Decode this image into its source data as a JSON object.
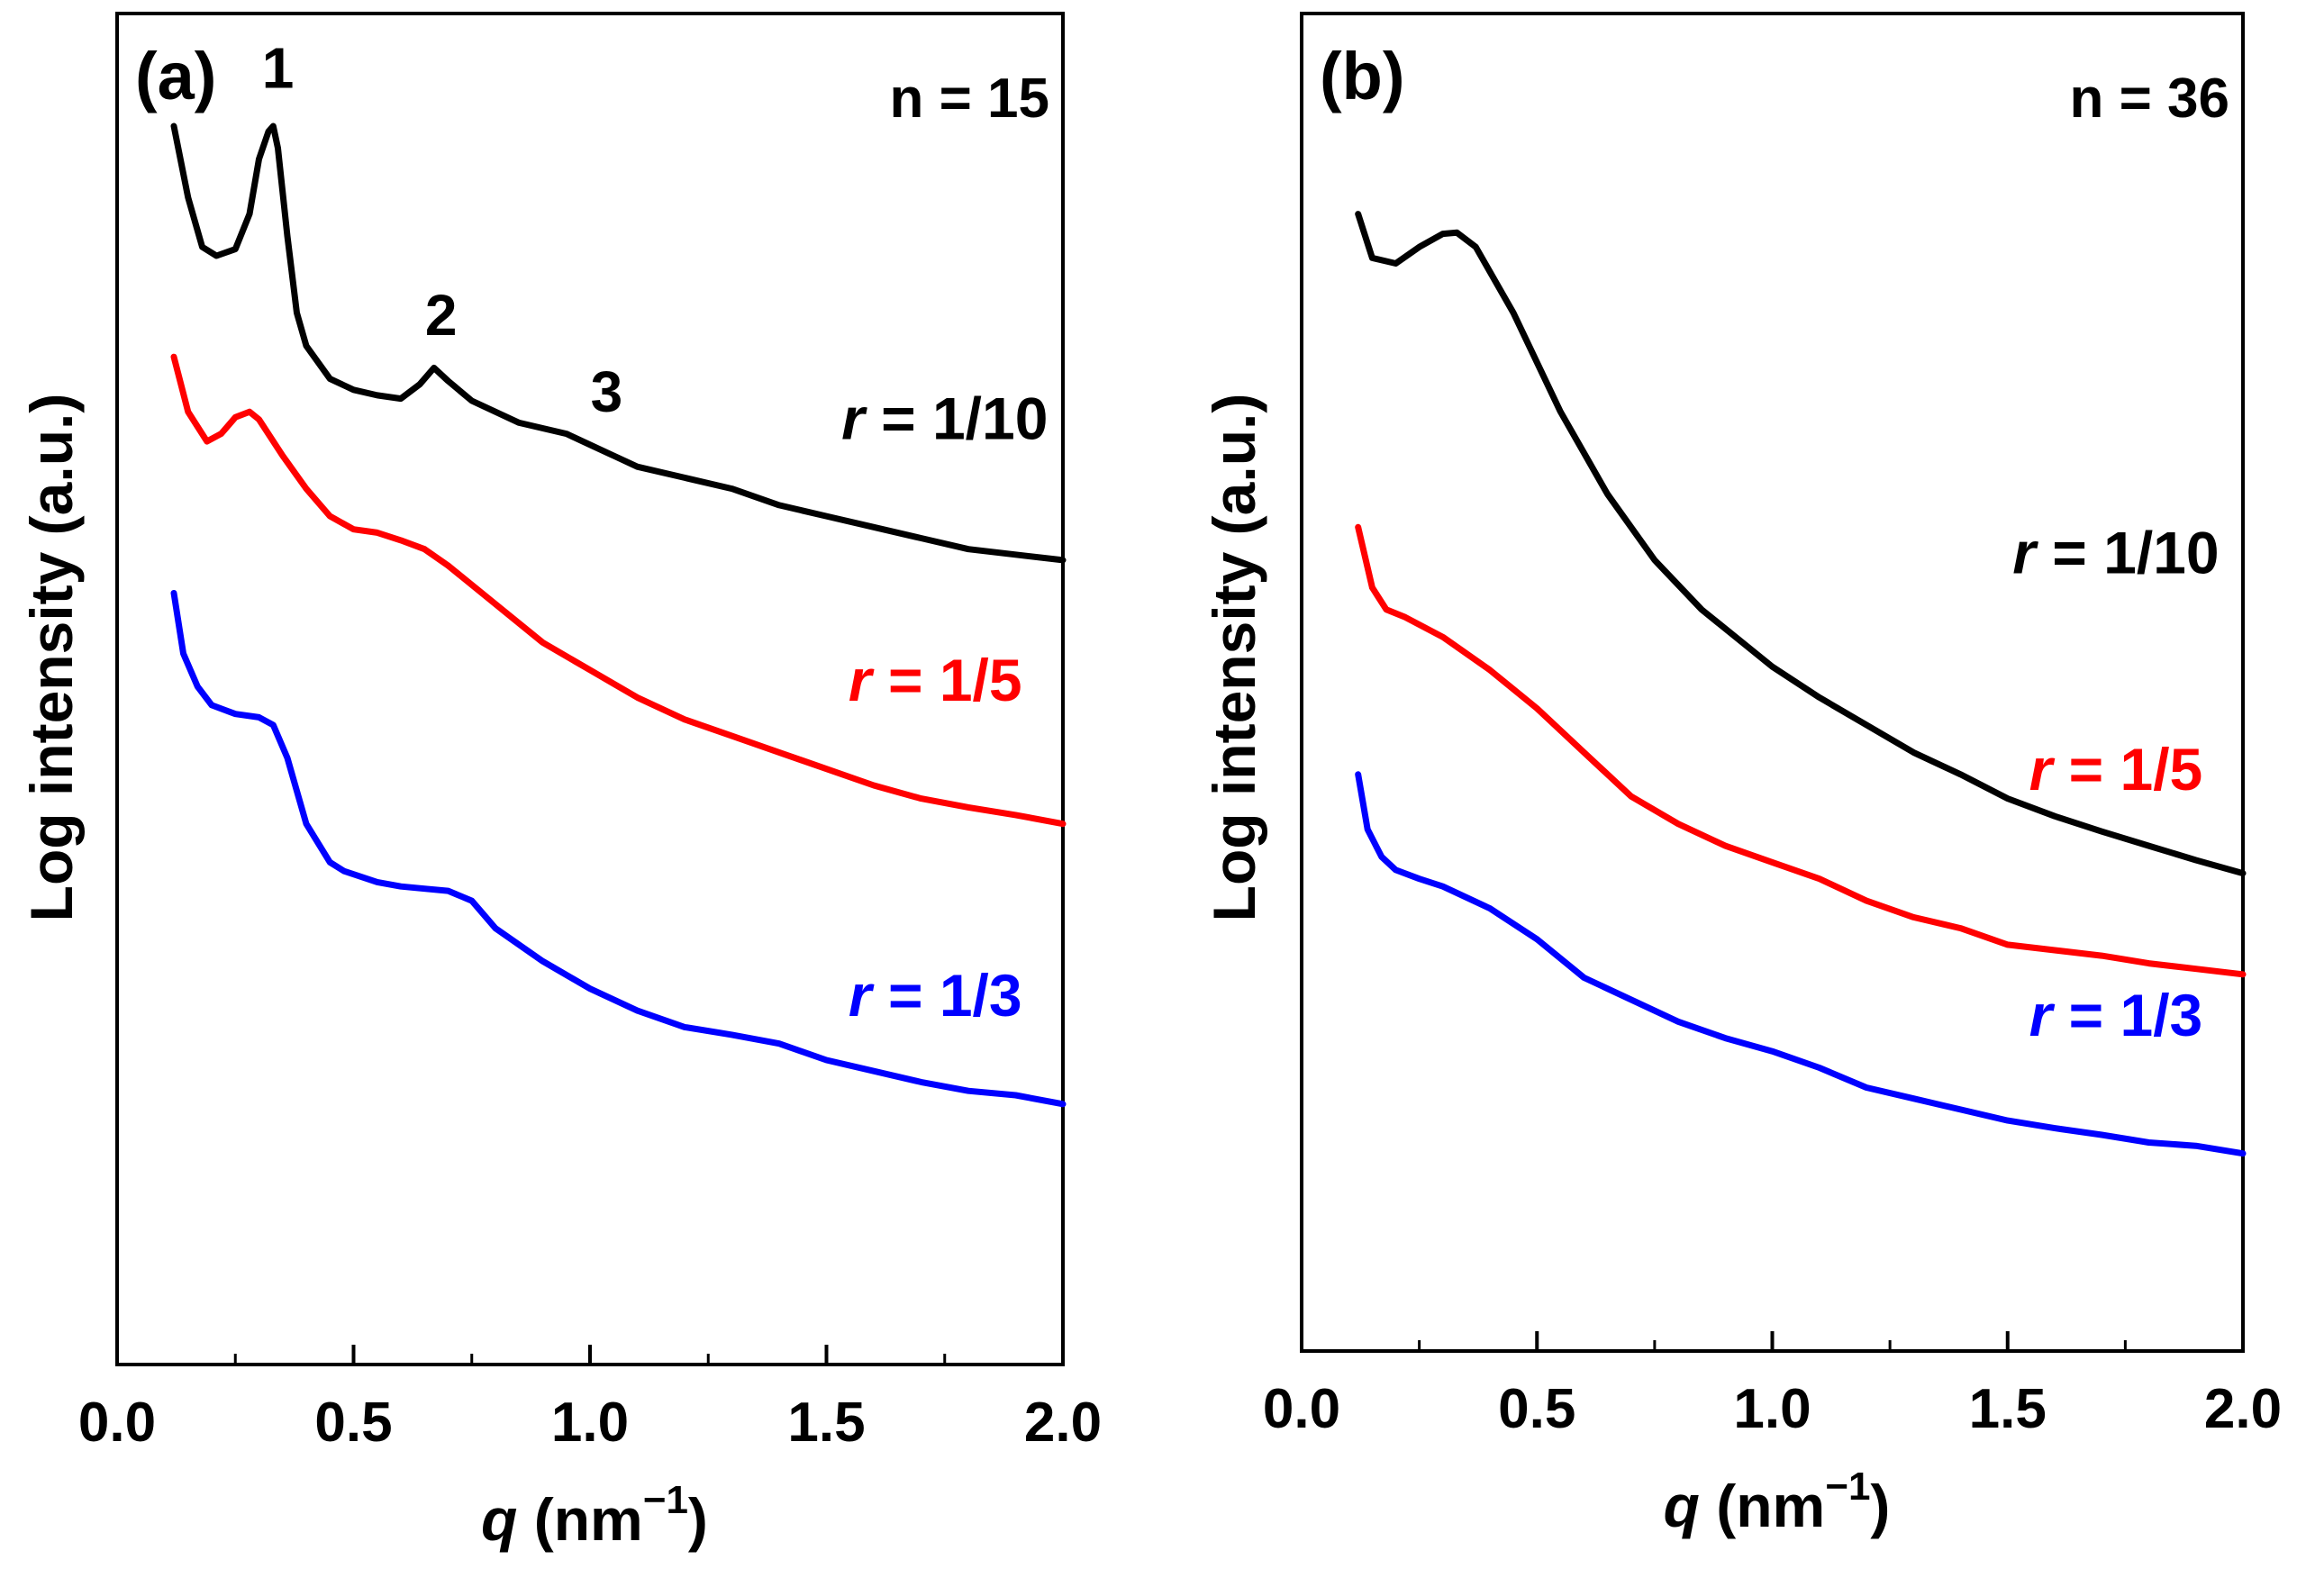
{
  "chart_data": [
    {
      "type": "line",
      "panel_label": "(a)",
      "annotation": "n = 15",
      "xlabel_main": "q",
      "xlabel_unit": " (nm",
      "xlabel_sup": "−1",
      "xlabel_close": ")",
      "ylabel": "Log intensity (a.u.)",
      "xlim": [
        0.0,
        2.0
      ],
      "ylim": [
        0,
        100
      ],
      "x_ticks": [
        0.0,
        0.5,
        1.0,
        1.5,
        2.0
      ],
      "x_tick_labels": [
        "0.0",
        "0.5",
        "1.0",
        "1.5",
        "2.0"
      ],
      "y_ticks_shown": false,
      "series": [
        {
          "name": "r = 1/10",
          "label_prefix": "r",
          "label_suffix": " = 1/10",
          "color": "#000000",
          "label_pos": [
            1.75,
            71.5
          ],
          "x": [
            0.12,
            0.15,
            0.18,
            0.21,
            0.25,
            0.28,
            0.3,
            0.32,
            0.33,
            0.34,
            0.36,
            0.38,
            0.4,
            0.45,
            0.5,
            0.55,
            0.6,
            0.64,
            0.67,
            0.7,
            0.75,
            0.85,
            0.95,
            1.0,
            1.05,
            1.1,
            1.2,
            1.3,
            1.4,
            1.5,
            1.6,
            1.7,
            1.8,
            1.9,
            2.0
          ],
          "y": [
            100.0,
            93.5,
            89.0,
            88.2,
            88.8,
            92.0,
            97.0,
            99.5,
            100.0,
            98.0,
            90.0,
            83.0,
            80.0,
            77.0,
            76.0,
            75.5,
            75.2,
            76.5,
            78.0,
            76.8,
            75.0,
            73.0,
            72.0,
            71.0,
            70.0,
            69.0,
            68.0,
            67.0,
            65.5,
            64.5,
            63.5,
            62.5,
            61.5,
            61.0,
            60.5
          ]
        },
        {
          "name": "r = 1/5",
          "label_prefix": "r",
          "label_suffix": " = 1/5",
          "color": "#ff0000",
          "label_pos": [
            1.73,
            47.7
          ],
          "x": [
            0.12,
            0.15,
            0.19,
            0.22,
            0.25,
            0.28,
            0.3,
            0.35,
            0.4,
            0.45,
            0.5,
            0.55,
            0.6,
            0.65,
            0.7,
            0.8,
            0.9,
            1.0,
            1.1,
            1.2,
            1.3,
            1.4,
            1.5,
            1.6,
            1.7,
            1.8,
            1.9,
            2.0
          ],
          "y": [
            79.0,
            74.0,
            71.3,
            72.0,
            73.5,
            74.0,
            73.3,
            70.0,
            67.0,
            64.5,
            63.3,
            63.0,
            62.3,
            61.5,
            60.0,
            56.5,
            53.0,
            50.5,
            48.0,
            46.0,
            44.5,
            43.0,
            41.5,
            40.0,
            38.8,
            38.0,
            37.3,
            36.5
          ]
        },
        {
          "name": "r = 1/3",
          "label_prefix": "r",
          "label_suffix": " = 1/3",
          "color": "#0000ff",
          "label_pos": [
            1.73,
            19.0
          ],
          "x": [
            0.12,
            0.14,
            0.17,
            0.2,
            0.25,
            0.3,
            0.33,
            0.36,
            0.4,
            0.45,
            0.48,
            0.55,
            0.6,
            0.65,
            0.7,
            0.75,
            0.8,
            0.9,
            1.0,
            1.1,
            1.2,
            1.3,
            1.4,
            1.5,
            1.6,
            1.7,
            1.8,
            1.9,
            2.0
          ],
          "y": [
            57.5,
            52.0,
            49.0,
            47.3,
            46.5,
            46.2,
            45.5,
            42.5,
            36.5,
            33.0,
            32.2,
            31.2,
            30.8,
            30.6,
            30.4,
            29.5,
            27.0,
            24.0,
            21.5,
            19.5,
            18.0,
            17.3,
            16.5,
            15.0,
            14.0,
            13.0,
            12.2,
            11.8,
            11.0
          ]
        }
      ],
      "annotations": [
        {
          "text": "1",
          "x": 0.34,
          "y": 103.5
        },
        {
          "text": "2",
          "x": 0.685,
          "y": 81.0
        },
        {
          "text": "3",
          "x": 1.035,
          "y": 74.0
        }
      ]
    },
    {
      "type": "line",
      "panel_label": "(b)",
      "annotation": "n = 36",
      "xlabel_main": "q",
      "xlabel_unit": " (nm",
      "xlabel_sup": "−1",
      "xlabel_close": ")",
      "ylabel": "Log intensity (a.u.)",
      "xlim": [
        0.0,
        2.0
      ],
      "ylim": [
        0,
        100
      ],
      "x_ticks": [
        0.0,
        0.5,
        1.0,
        1.5,
        2.0
      ],
      "x_tick_labels": [
        "0.0",
        "0.5",
        "1.0",
        "1.5",
        "2.0"
      ],
      "y_ticks_shown": false,
      "series": [
        {
          "name": "r = 1/10",
          "label_prefix": "r",
          "label_suffix": " = 1/10",
          "color": "#000000",
          "label_pos": [
            1.73,
            59.3
          ],
          "x": [
            0.12,
            0.15,
            0.2,
            0.25,
            0.3,
            0.33,
            0.37,
            0.45,
            0.55,
            0.65,
            0.75,
            0.85,
            1.0,
            1.1,
            1.2,
            1.3,
            1.4,
            1.5,
            1.6,
            1.7,
            1.8,
            1.9,
            2.0
          ],
          "y": [
            92.0,
            88.0,
            87.5,
            89.0,
            90.2,
            90.3,
            89.0,
            83.0,
            74.0,
            66.5,
            60.5,
            56.0,
            50.8,
            48.0,
            45.5,
            43.0,
            41.0,
            38.8,
            37.2,
            35.8,
            34.5,
            33.2,
            32.0
          ]
        },
        {
          "name": "r = 1/5",
          "label_prefix": "r",
          "label_suffix": " = 1/5",
          "color": "#ff0000",
          "label_pos": [
            1.73,
            39.6
          ],
          "x": [
            0.12,
            0.15,
            0.18,
            0.22,
            0.3,
            0.4,
            0.5,
            0.6,
            0.7,
            0.8,
            0.9,
            1.0,
            1.1,
            1.2,
            1.3,
            1.4,
            1.5,
            1.6,
            1.7,
            1.8,
            1.9,
            2.0
          ],
          "y": [
            63.5,
            58.0,
            56.0,
            55.3,
            53.5,
            50.5,
            47.0,
            43.0,
            39.0,
            36.5,
            34.5,
            33.0,
            31.5,
            29.5,
            28.0,
            27.0,
            25.5,
            25.0,
            24.5,
            23.8,
            23.3,
            22.8
          ]
        },
        {
          "name": "r = 1/3",
          "label_prefix": "r",
          "label_suffix": " = 1/3",
          "color": "#0000ff",
          "label_pos": [
            1.73,
            17.2
          ],
          "x": [
            0.12,
            0.14,
            0.17,
            0.2,
            0.25,
            0.3,
            0.4,
            0.5,
            0.6,
            0.7,
            0.8,
            0.9,
            1.0,
            1.1,
            1.2,
            1.3,
            1.4,
            1.5,
            1.6,
            1.7,
            1.8,
            1.9,
            2.0
          ],
          "y": [
            41.0,
            36.0,
            33.5,
            32.3,
            31.5,
            30.8,
            28.8,
            26.0,
            22.5,
            20.5,
            18.5,
            17.0,
            15.8,
            14.3,
            12.5,
            11.5,
            10.5,
            9.5,
            8.8,
            8.2,
            7.5,
            7.2,
            6.5
          ]
        }
      ],
      "annotations": []
    }
  ]
}
